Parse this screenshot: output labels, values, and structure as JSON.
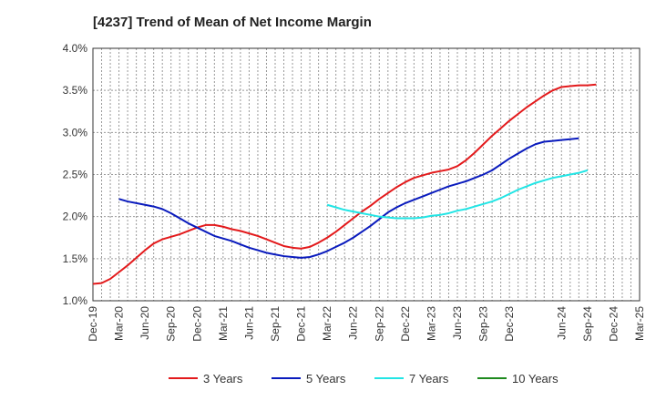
{
  "chart_data": {
    "type": "line",
    "title": "[4237]  Trend of Mean of Net Income Margin",
    "xlabel": "",
    "ylabel": "",
    "ylim": [
      1.0,
      4.0
    ],
    "y_ticks": [
      "1.0%",
      "1.5%",
      "2.0%",
      "2.5%",
      "3.0%",
      "3.5%",
      "4.0%"
    ],
    "x_ticks": [
      "Dec-19",
      "Mar-20",
      "Jun-20",
      "Sep-20",
      "Dec-20",
      "Mar-21",
      "Jun-21",
      "Sep-21",
      "Dec-21",
      "Mar-22",
      "Jun-22",
      "Sep-22",
      "Dec-22",
      "Mar-23",
      "Jun-23",
      "Sep-23",
      "Dec-23",
      "Jun-24",
      "Sep-24",
      "Dec-24",
      "Mar-25"
    ],
    "x_tick_quarter_index": [
      0,
      1,
      2,
      3,
      4,
      5,
      6,
      7,
      8,
      9,
      10,
      11,
      12,
      13,
      14,
      15,
      16,
      18,
      19,
      20,
      21
    ],
    "x_range_quarters": [
      0,
      21
    ],
    "grid": true,
    "legend_position": "bottom",
    "series": [
      {
        "name": "3 Years",
        "color": "#e31a1c",
        "start_month_index": 0,
        "values": [
          1.2,
          1.21,
          1.26,
          1.34,
          1.42,
          1.51,
          1.6,
          1.68,
          1.73,
          1.76,
          1.79,
          1.83,
          1.87,
          1.9,
          1.9,
          1.88,
          1.85,
          1.83,
          1.8,
          1.77,
          1.73,
          1.69,
          1.65,
          1.63,
          1.62,
          1.64,
          1.69,
          1.75,
          1.82,
          1.9,
          1.98,
          2.06,
          2.13,
          2.21,
          2.28,
          2.35,
          2.41,
          2.46,
          2.49,
          2.52,
          2.54,
          2.56,
          2.6,
          2.67,
          2.76,
          2.86,
          2.96,
          3.05,
          3.14,
          3.22,
          3.3,
          3.37,
          3.44,
          3.5,
          3.54,
          3.55,
          3.56,
          3.56,
          3.57
        ]
      },
      {
        "name": "5 Years",
        "color": "#0a1bbd",
        "start_month_index": 3,
        "values": [
          2.21,
          2.18,
          2.16,
          2.14,
          2.12,
          2.09,
          2.04,
          1.98,
          1.92,
          1.87,
          1.82,
          1.77,
          1.74,
          1.71,
          1.67,
          1.63,
          1.6,
          1.57,
          1.55,
          1.53,
          1.52,
          1.51,
          1.52,
          1.55,
          1.59,
          1.64,
          1.69,
          1.75,
          1.82,
          1.89,
          1.97,
          2.05,
          2.11,
          2.16,
          2.2,
          2.24,
          2.28,
          2.32,
          2.36,
          2.39,
          2.42,
          2.46,
          2.5,
          2.55,
          2.62,
          2.69,
          2.75,
          2.81,
          2.86,
          2.89,
          2.9,
          2.91,
          2.92,
          2.93
        ]
      },
      {
        "name": "7 Years",
        "color": "#22e5e5",
        "start_month_index": 27,
        "values": [
          2.14,
          2.11,
          2.08,
          2.06,
          2.04,
          2.02,
          2.0,
          1.99,
          1.98,
          1.98,
          1.98,
          1.99,
          2.01,
          2.02,
          2.04,
          2.07,
          2.09,
          2.12,
          2.15,
          2.18,
          2.22,
          2.27,
          2.32,
          2.36,
          2.4,
          2.43,
          2.46,
          2.48,
          2.5,
          2.52,
          2.55
        ]
      },
      {
        "name": "10 Years",
        "color": "#1e8a1e",
        "start_month_index": 0,
        "values": []
      }
    ]
  }
}
